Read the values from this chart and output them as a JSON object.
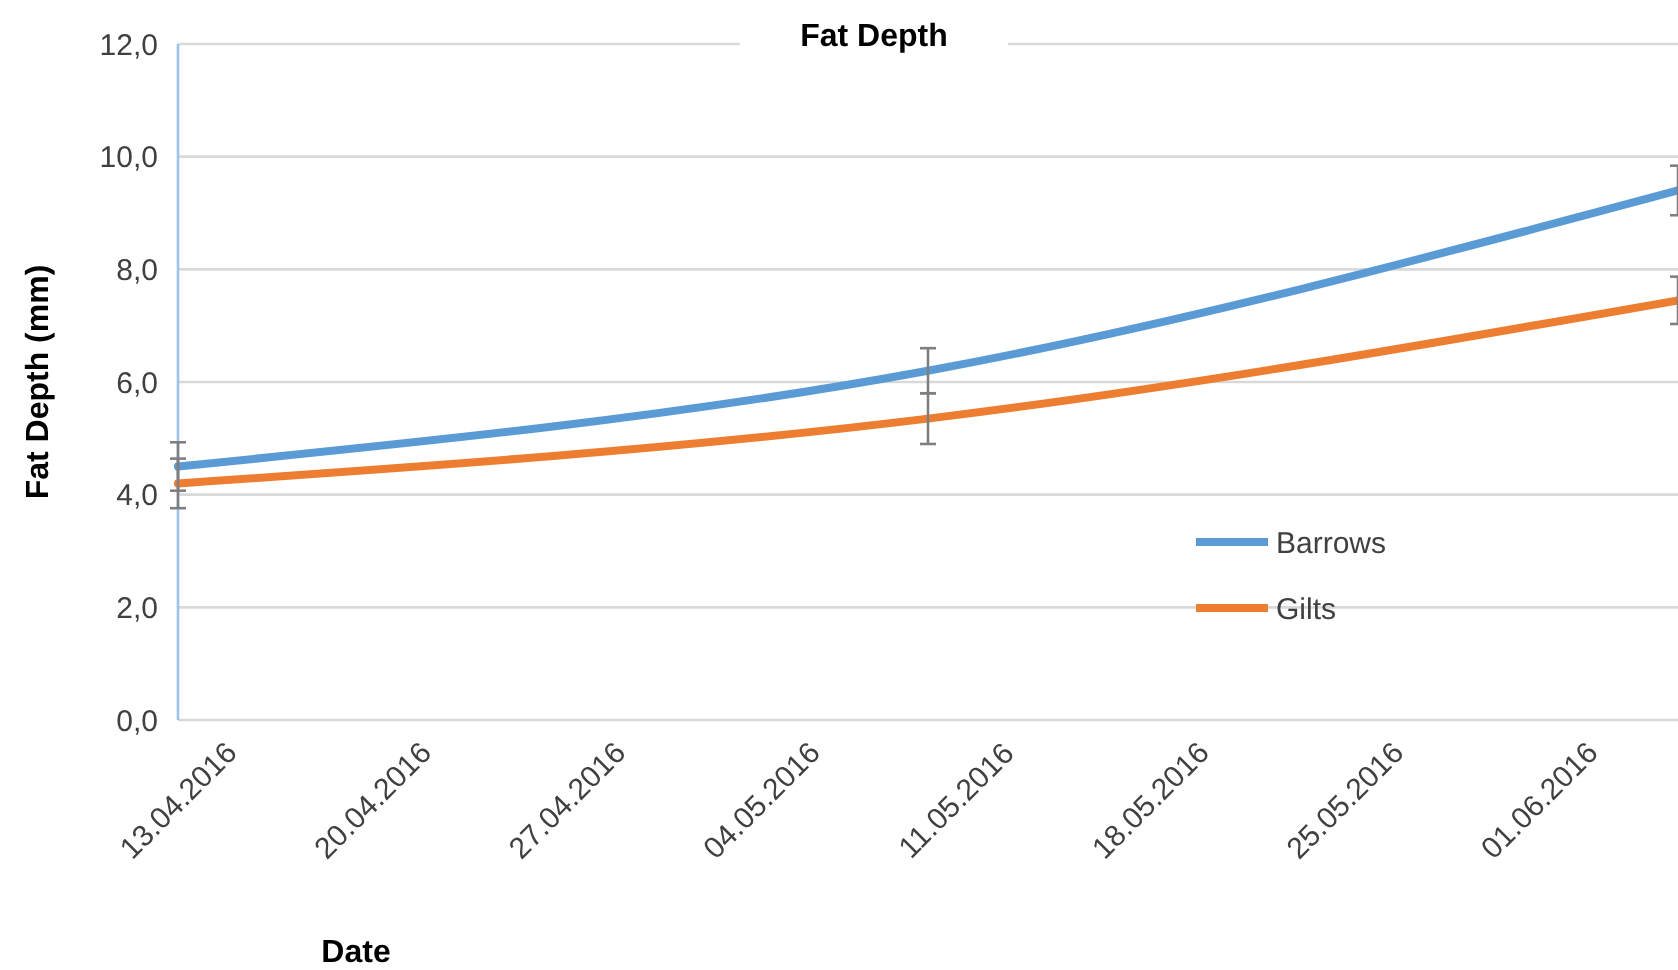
{
  "chart_data": {
    "type": "line",
    "title": "Fat Depth",
    "xlabel": "Date",
    "ylabel": "Fat Depth (mm)",
    "x": [
      "2016-04-13",
      "2016-05-10",
      "2016-06-06"
    ],
    "series": [
      {
        "name": "Barrows",
        "color": "#5b9bd5",
        "values": [
          4.5,
          6.2,
          9.4
        ],
        "errors": [
          0.43,
          0.4,
          0.44
        ]
      },
      {
        "name": "Gilts",
        "color": "#ed7d31",
        "values": [
          4.2,
          5.35,
          7.45
        ],
        "errors": [
          0.44,
          0.45,
          0.42
        ]
      }
    ],
    "xlim": [
      "2016-04-13",
      "2016-06-06"
    ],
    "xticks": [
      {
        "value": "2016-04-13",
        "label": "13.04.2016"
      },
      {
        "value": "2016-04-20",
        "label": "20.04.2016"
      },
      {
        "value": "2016-04-27",
        "label": "27.04.2016"
      },
      {
        "value": "2016-05-04",
        "label": "04.05.2016"
      },
      {
        "value": "2016-05-11",
        "label": "11.05.2016"
      },
      {
        "value": "2016-05-18",
        "label": "18.05.2016"
      },
      {
        "value": "2016-05-25",
        "label": "25.05.2016"
      },
      {
        "value": "2016-06-01",
        "label": "01.06.2016"
      }
    ],
    "ylim": [
      0,
      12
    ],
    "yticks": [
      {
        "value": 0,
        "label": "0,0"
      },
      {
        "value": 2,
        "label": "2,0"
      },
      {
        "value": 4,
        "label": "4,0"
      },
      {
        "value": 6,
        "label": "6,0"
      },
      {
        "value": 8,
        "label": "8,0"
      },
      {
        "value": 10,
        "label": "10,0"
      },
      {
        "value": 12,
        "label": "12,0"
      }
    ],
    "grid": "y",
    "legend": "right",
    "marker": "none",
    "line_style": "solid"
  }
}
